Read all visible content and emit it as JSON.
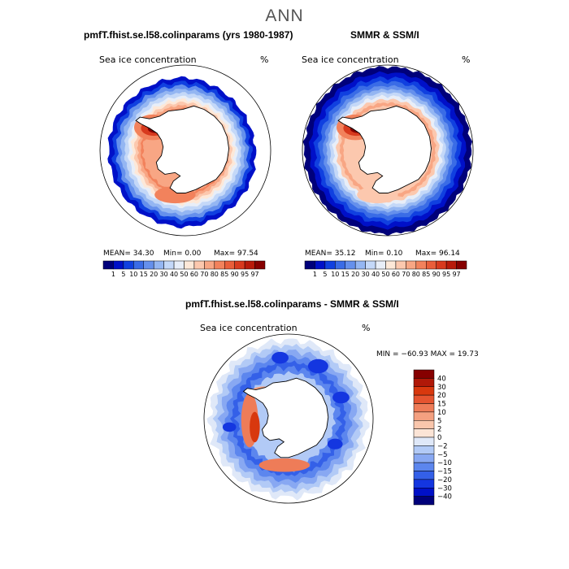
{
  "figure_title": "ANN",
  "panel_titles": {
    "model": "pmfT.fhist.se.l58.colinparams (yrs 1980-1987)",
    "obs": "SMMR & SSM/I",
    "diff": "pmfT.fhist.se.l58.colinparams - SMMR & SSM/I"
  },
  "field_label": "Sea ice concentration",
  "units": "%",
  "colors": {
    "ocean": "#ffffff",
    "land": "#ffffff",
    "coast": "#000000",
    "abs_scale": [
      "#00007a",
      "#0010c8",
      "#1040e0",
      "#3a6ce6",
      "#6590ec",
      "#94b6f2",
      "#c4d8f8",
      "#e8eef8",
      "#fde8d8",
      "#fcc8ae",
      "#f8a684",
      "#f2825c",
      "#e95e3a",
      "#d83a1e",
      "#b81a0a",
      "#860000"
    ],
    "diff_scale": [
      "#00007a",
      "#0010c8",
      "#1436e0",
      "#3460e8",
      "#5c86ee",
      "#88a8f2",
      "#b2caf6",
      "#dfe8f8",
      "#fbe4d6",
      "#f9c6ac",
      "#f4a080",
      "#ee7c58",
      "#e55430",
      "#d8380e",
      "#b01808",
      "#860000"
    ]
  },
  "chart_data": [
    {
      "type": "heatmap",
      "panel": "model",
      "title": "pmfT.fhist.se.l58.colinparams (yrs 1980-1987)",
      "label": "Sea ice concentration",
      "units": "%",
      "projection": "south polar stereographic",
      "stats": {
        "mean_text": "MEAN=  34.30",
        "min_text": "Min=    0.00",
        "max_text": "Max=  97.54",
        "mean": 34.3,
        "min": 0.0,
        "max": 97.54
      },
      "colorbar_levels": [
        "1",
        "5",
        "10",
        "15",
        "20",
        "30",
        "40",
        "50",
        "60",
        "70",
        "80",
        "85",
        "90",
        "95",
        "97"
      ]
    },
    {
      "type": "heatmap",
      "panel": "obs",
      "title": "SMMR & SSM/I",
      "label": "Sea ice concentration",
      "units": "%",
      "projection": "south polar stereographic",
      "stats": {
        "mean_text": "MEAN=  35.12",
        "min_text": "Min=    0.10",
        "max_text": "Max=  96.14",
        "mean": 35.12,
        "min": 0.1,
        "max": 96.14
      },
      "colorbar_levels": [
        "1",
        "5",
        "10",
        "15",
        "20",
        "30",
        "40",
        "50",
        "60",
        "70",
        "80",
        "85",
        "90",
        "95",
        "97"
      ]
    },
    {
      "type": "heatmap",
      "panel": "difference",
      "title": "pmfT.fhist.se.l58.colinparams - SMMR & SSM/I",
      "label": "Sea ice concentration",
      "units": "%",
      "projection": "south polar stereographic",
      "stats": {
        "minmax_text": "MIN = −60.93  MAX =  19.73",
        "min": -60.93,
        "max": 19.73
      },
      "colorbar_levels": [
        "40",
        "30",
        "20",
        "15",
        "10",
        "5",
        "2",
        "0",
        "−2",
        "−5",
        "−10",
        "−15",
        "−20",
        "−30",
        "−40"
      ]
    }
  ]
}
